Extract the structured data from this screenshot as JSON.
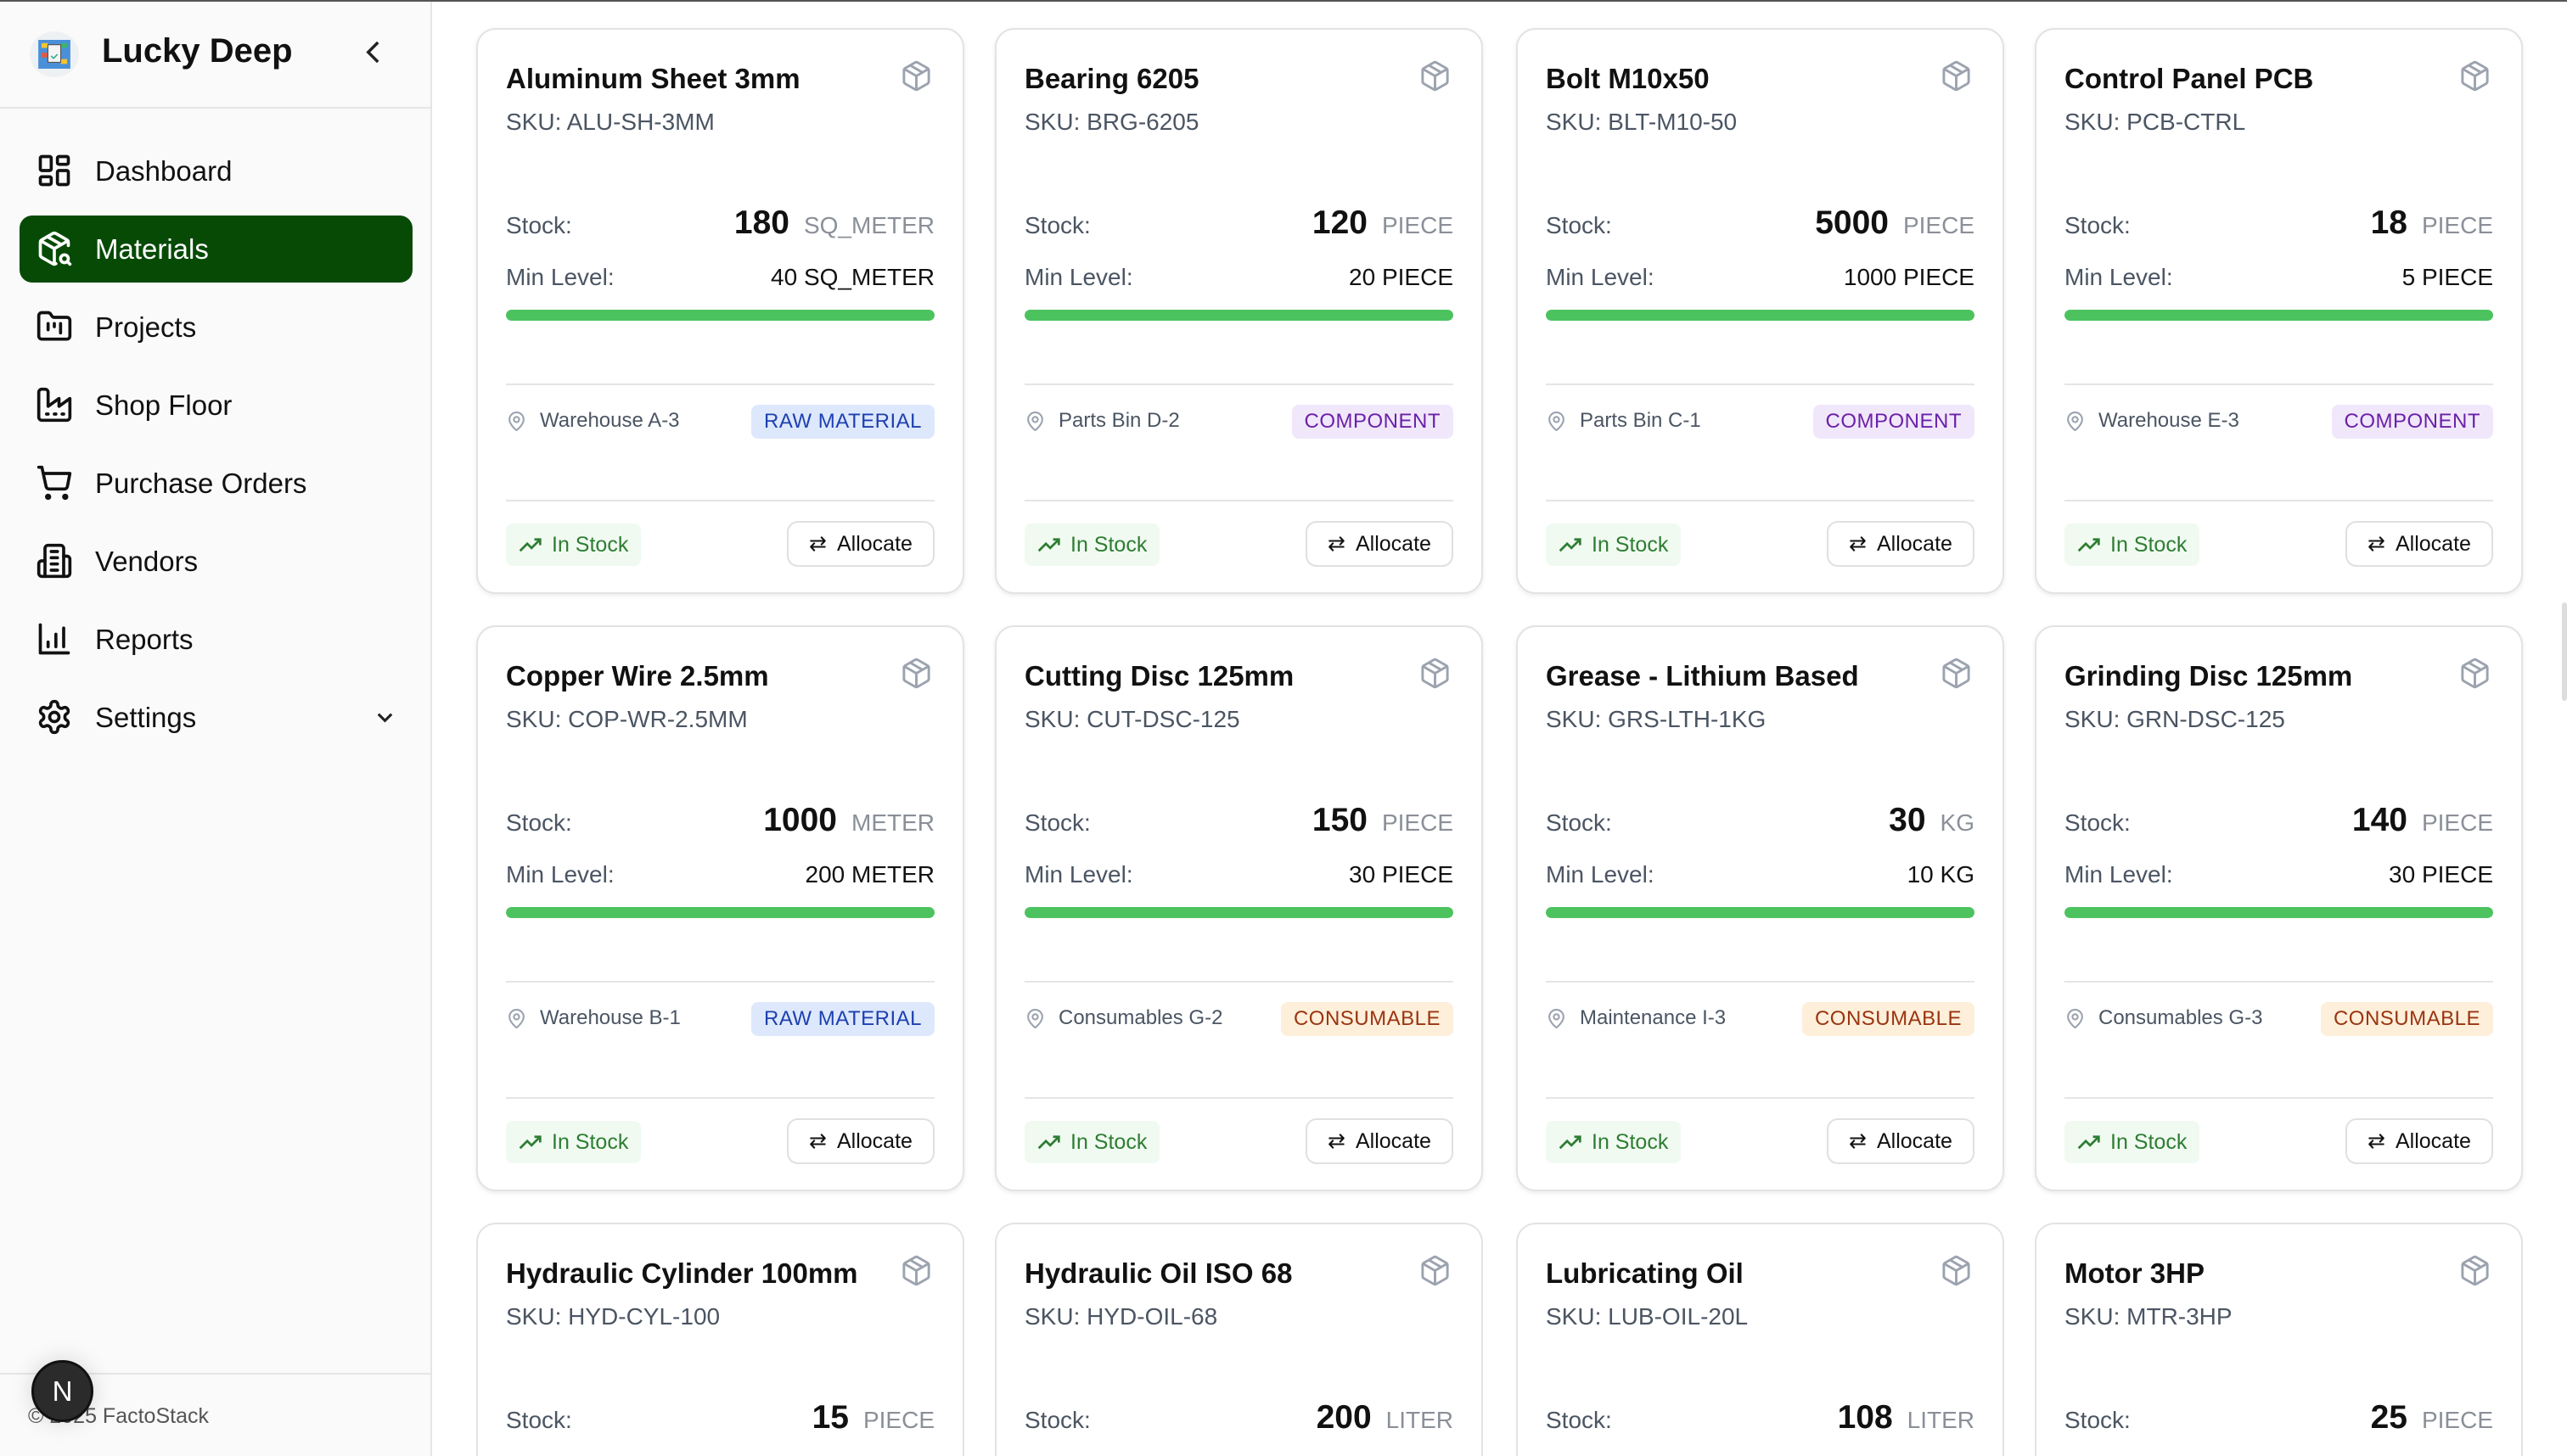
{
  "sidebar": {
    "brand": "Lucky Deep",
    "collapse_icon": "chevron-left-icon",
    "items": [
      {
        "label": "Dashboard",
        "icon": "dashboard-grid-icon",
        "active": false
      },
      {
        "label": "Materials",
        "icon": "package-search-icon",
        "active": true
      },
      {
        "label": "Projects",
        "icon": "folder-kanban-icon",
        "active": false
      },
      {
        "label": "Shop Floor",
        "icon": "factory-icon",
        "active": false
      },
      {
        "label": "Purchase Orders",
        "icon": "cart-icon",
        "active": false
      },
      {
        "label": "Vendors",
        "icon": "building-icon",
        "active": false
      },
      {
        "label": "Reports",
        "icon": "bar-chart-icon",
        "active": false
      },
      {
        "label": "Settings",
        "icon": "gear-icon",
        "active": false,
        "expandable": true
      }
    ],
    "footer": "© 2025 FactoStack",
    "badge": "N"
  },
  "labels": {
    "stock": "Stock:",
    "min_level": "Min Level:",
    "allocate": "Allocate",
    "sku_prefix": "SKU: "
  },
  "colors": {
    "accent": "#064a06",
    "progress": "#4cc35e",
    "in_stock": "#2e7d32"
  },
  "materials": [
    {
      "name": "Aluminum Sheet 3mm",
      "sku": "ALU-SH-3MM",
      "stock": "180",
      "unit": "SQ_METER",
      "min_level": "40 SQ_METER",
      "progress": 100,
      "location": "Warehouse A-3",
      "category": "RAW MATERIAL",
      "category_type": "raw",
      "status": "In Stock"
    },
    {
      "name": "Bearing 6205",
      "sku": "BRG-6205",
      "stock": "120",
      "unit": "PIECE",
      "min_level": "20 PIECE",
      "progress": 100,
      "location": "Parts Bin D-2",
      "category": "COMPONENT",
      "category_type": "component",
      "status": "In Stock"
    },
    {
      "name": "Bolt M10x50",
      "sku": "BLT-M10-50",
      "stock": "5000",
      "unit": "PIECE",
      "min_level": "1000 PIECE",
      "progress": 100,
      "location": "Parts Bin C-1",
      "category": "COMPONENT",
      "category_type": "component",
      "status": "In Stock"
    },
    {
      "name": "Control Panel PCB",
      "sku": "PCB-CTRL",
      "stock": "18",
      "unit": "PIECE",
      "min_level": "5 PIECE",
      "progress": 100,
      "location": "Warehouse E-3",
      "category": "COMPONENT",
      "category_type": "component",
      "status": "In Stock"
    },
    {
      "name": "Copper Wire 2.5mm",
      "sku": "COP-WR-2.5MM",
      "stock": "1000",
      "unit": "METER",
      "min_level": "200 METER",
      "progress": 100,
      "location": "Warehouse B-1",
      "category": "RAW MATERIAL",
      "category_type": "raw",
      "status": "In Stock"
    },
    {
      "name": "Cutting Disc 125mm",
      "sku": "CUT-DSC-125",
      "stock": "150",
      "unit": "PIECE",
      "min_level": "30 PIECE",
      "progress": 100,
      "location": "Consumables G-2",
      "category": "CONSUMABLE",
      "category_type": "consumable",
      "status": "In Stock"
    },
    {
      "name": "Grease - Lithium Based",
      "sku": "GRS-LTH-1KG",
      "stock": "30",
      "unit": "KG",
      "min_level": "10 KG",
      "progress": 100,
      "location": "Maintenance I-3",
      "category": "CONSUMABLE",
      "category_type": "consumable",
      "status": "In Stock"
    },
    {
      "name": "Grinding Disc 125mm",
      "sku": "GRN-DSC-125",
      "stock": "140",
      "unit": "PIECE",
      "min_level": "30 PIECE",
      "progress": 100,
      "location": "Consumables G-3",
      "category": "CONSUMABLE",
      "category_type": "consumable",
      "status": "In Stock"
    },
    {
      "name": "Hydraulic Cylinder 100mm",
      "sku": "HYD-CYL-100",
      "stock": "15",
      "unit": "PIECE"
    },
    {
      "name": "Hydraulic Oil ISO 68",
      "sku": "HYD-OIL-68",
      "stock": "200",
      "unit": "LITER"
    },
    {
      "name": "Lubricating Oil",
      "sku": "LUB-OIL-20L",
      "stock": "108",
      "unit": "LITER"
    },
    {
      "name": "Motor 3HP",
      "sku": "MTR-3HP",
      "stock": "25",
      "unit": "PIECE"
    }
  ]
}
